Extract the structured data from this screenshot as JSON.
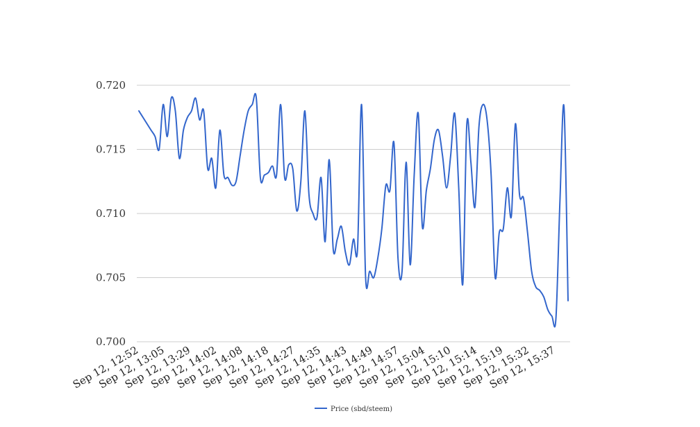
{
  "chart_data": {
    "type": "line",
    "x_tick_labels": [
      "Sep 12, 12:52",
      "Sep 12, 13:05",
      "Sep 12, 13:29",
      "Sep 12, 14:02",
      "Sep 12, 14:08",
      "Sep 12, 14:18",
      "Sep 12, 14:27",
      "Sep 12, 14:35",
      "Sep 12, 14:43",
      "Sep 12, 14:49",
      "Sep 12, 14:57",
      "Sep 12, 15:04",
      "Sep 12, 15:10",
      "Sep 12, 15:14",
      "Sep 12, 15:19",
      "Sep 12, 15:32",
      "Sep 12, 15:37"
    ],
    "y_ticks": [
      "0.700",
      "0.705",
      "0.710",
      "0.715",
      "0.720"
    ],
    "ylim": [
      0.7,
      0.72
    ],
    "grid": true,
    "legend_position": "bottom",
    "series": [
      {
        "name": "Price (sbd/steem)",
        "color": "#3366cc",
        "values": [
          0.718,
          0.7175,
          0.717,
          0.7165,
          0.716,
          0.715,
          0.7185,
          0.716,
          0.719,
          0.718,
          0.7143,
          0.7165,
          0.7175,
          0.718,
          0.719,
          0.7173,
          0.718,
          0.7135,
          0.7143,
          0.712,
          0.7165,
          0.713,
          0.7128,
          0.7122,
          0.7125,
          0.7145,
          0.7165,
          0.718,
          0.7185,
          0.719,
          0.7128,
          0.713,
          0.7132,
          0.7137,
          0.713,
          0.7185,
          0.7128,
          0.7138,
          0.7135,
          0.7102,
          0.7125,
          0.718,
          0.7115,
          0.71,
          0.7097,
          0.7128,
          0.7078,
          0.7142,
          0.7072,
          0.708,
          0.709,
          0.707,
          0.706,
          0.708,
          0.7072,
          0.7185,
          0.705,
          0.7055,
          0.705,
          0.7065,
          0.7088,
          0.7122,
          0.7118,
          0.7155,
          0.7065,
          0.7055,
          0.714,
          0.706,
          0.713,
          0.7178,
          0.709,
          0.7118,
          0.7135,
          0.7158,
          0.7165,
          0.7145,
          0.712,
          0.7145,
          0.7178,
          0.712,
          0.7045,
          0.717,
          0.714,
          0.7105,
          0.7168,
          0.7185,
          0.7173,
          0.713,
          0.705,
          0.7085,
          0.7088,
          0.712,
          0.7098,
          0.717,
          0.7115,
          0.7112,
          0.7085,
          0.7055,
          0.7043,
          0.704,
          0.7035,
          0.7025,
          0.702,
          0.7018,
          0.711,
          0.7183,
          0.7032
        ]
      }
    ]
  }
}
